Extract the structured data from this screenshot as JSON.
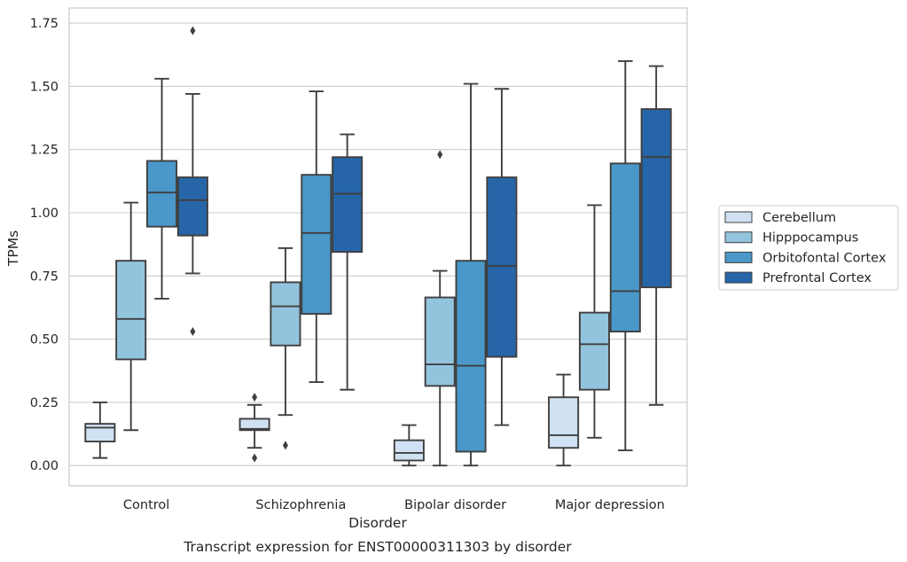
{
  "chart_data": {
    "type": "box",
    "caption": "Transcript expression for ENST00000311303 by disorder",
    "xlabel": "Disorder",
    "ylabel": "TPMs",
    "ylim": [
      -0.08,
      1.81
    ],
    "yticks": [
      "0.00",
      "0.25",
      "0.50",
      "0.75",
      "1.00",
      "1.25",
      "1.50",
      "1.75"
    ],
    "ytick_values": [
      0,
      0.25,
      0.5,
      0.75,
      1.0,
      1.25,
      1.5,
      1.75
    ],
    "grid": "horizontal",
    "legend_position": "right",
    "categories": [
      "Control",
      "Schizophrenia",
      "Bipolar disorder",
      "Major depression"
    ],
    "series": [
      {
        "name": "Cerebellum",
        "color": "#cfe1f2",
        "boxes": [
          {
            "whislo": 0.03,
            "q1": 0.095,
            "med": 0.15,
            "q3": 0.165,
            "whishi": 0.25,
            "fliers": []
          },
          {
            "whislo": 0.07,
            "q1": 0.14,
            "med": 0.145,
            "q3": 0.185,
            "whishi": 0.24,
            "fliers": [
              0.27,
              0.03
            ]
          },
          {
            "whislo": 0.0,
            "q1": 0.02,
            "med": 0.05,
            "q3": 0.1,
            "whishi": 0.16,
            "fliers": []
          },
          {
            "whislo": 0.0,
            "q1": 0.07,
            "med": 0.12,
            "q3": 0.27,
            "whishi": 0.36,
            "fliers": []
          }
        ]
      },
      {
        "name": "Hipppocampus",
        "color": "#93c4de",
        "boxes": [
          {
            "whislo": 0.14,
            "q1": 0.42,
            "med": 0.58,
            "q3": 0.81,
            "whishi": 1.04,
            "fliers": []
          },
          {
            "whislo": 0.2,
            "q1": 0.475,
            "med": 0.63,
            "q3": 0.725,
            "whishi": 0.86,
            "fliers": [
              0.08
            ]
          },
          {
            "whislo": 0.0,
            "q1": 0.315,
            "med": 0.4,
            "q3": 0.665,
            "whishi": 0.77,
            "fliers": [
              1.23
            ]
          },
          {
            "whislo": 0.11,
            "q1": 0.3,
            "med": 0.48,
            "q3": 0.605,
            "whishi": 1.03,
            "fliers": []
          }
        ]
      },
      {
        "name": "Orbitofontal Cortex",
        "color": "#4a98c9",
        "boxes": [
          {
            "whislo": 0.66,
            "q1": 0.945,
            "med": 1.08,
            "q3": 1.205,
            "whishi": 1.53,
            "fliers": []
          },
          {
            "whislo": 0.33,
            "q1": 0.6,
            "med": 0.92,
            "q3": 1.15,
            "whishi": 1.48,
            "fliers": []
          },
          {
            "whislo": 0.0,
            "q1": 0.055,
            "med": 0.395,
            "q3": 0.81,
            "whishi": 1.51,
            "fliers": []
          },
          {
            "whislo": 0.06,
            "q1": 0.53,
            "med": 0.69,
            "q3": 1.195,
            "whishi": 1.6,
            "fliers": []
          }
        ]
      },
      {
        "name": "Prefrontal Cortex",
        "color": "#2666a8",
        "boxes": [
          {
            "whislo": 0.76,
            "q1": 0.91,
            "med": 1.05,
            "q3": 1.14,
            "whishi": 1.47,
            "fliers": [
              1.72,
              0.53
            ]
          },
          {
            "whislo": 0.3,
            "q1": 0.845,
            "med": 1.075,
            "q3": 1.22,
            "whishi": 1.31,
            "fliers": []
          },
          {
            "whislo": 0.16,
            "q1": 0.43,
            "med": 0.79,
            "q3": 1.14,
            "whishi": 1.49,
            "fliers": []
          },
          {
            "whislo": 0.24,
            "q1": 0.705,
            "med": 1.22,
            "q3": 1.41,
            "whishi": 1.58,
            "fliers": []
          }
        ]
      }
    ]
  }
}
